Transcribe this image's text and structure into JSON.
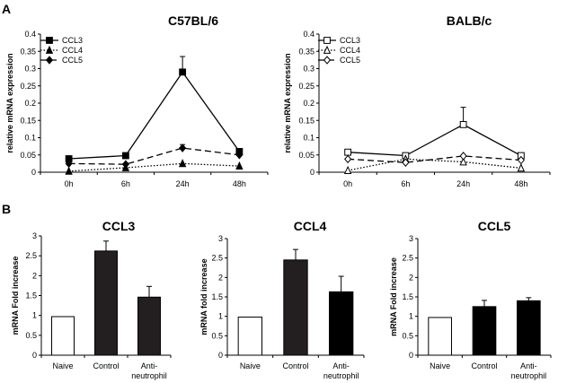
{
  "panel_labels": {
    "a": "A",
    "b": "B"
  },
  "chart_data": [
    {
      "id": "c57",
      "type": "line",
      "title": "C57BL/6",
      "xlabel": "",
      "ylabel": "relative mRNA expression",
      "categories": [
        "0h",
        "6h",
        "24h",
        "48h"
      ],
      "ylim": [
        0,
        0.4
      ],
      "yticks": [
        "0",
        "0.05",
        "0.1",
        "0.15",
        "0.2",
        "0.25",
        "0.3",
        "0.35",
        "0.4"
      ],
      "legend_position": "top-left",
      "series": [
        {
          "name": "CCL3",
          "marker": "square",
          "fill": "#000000",
          "dash": "solid",
          "values": [
            0.039,
            0.048,
            0.29,
            0.06
          ],
          "errors": [
            0.0,
            0.0,
            0.045,
            0.0
          ]
        },
        {
          "name": "CCL4",
          "marker": "triangle",
          "fill": "#000000",
          "dash": "dotted",
          "values": [
            0.003,
            0.013,
            0.025,
            0.018
          ],
          "errors": [
            0,
            0,
            0,
            0
          ]
        },
        {
          "name": "CCL5",
          "marker": "diamond",
          "fill": "#000000",
          "dash": "dashed",
          "values": [
            0.025,
            0.023,
            0.07,
            0.05
          ],
          "errors": [
            0,
            0,
            0.01,
            0
          ]
        }
      ]
    },
    {
      "id": "balb",
      "type": "line",
      "title": "BALB/c",
      "xlabel": "",
      "ylabel": "relative mRNA expression",
      "categories": [
        "0h",
        "6h",
        "24h",
        "48h"
      ],
      "ylim": [
        0,
        0.4
      ],
      "yticks": [
        "0",
        "0.05",
        "0.1",
        "0.15",
        "0.2",
        "0.25",
        "0.3",
        "0.35",
        "0.4"
      ],
      "legend_position": "top-left",
      "series": [
        {
          "name": "CCL3",
          "marker": "square",
          "fill": "#ffffff",
          "dash": "solid",
          "values": [
            0.058,
            0.048,
            0.138,
            0.048
          ],
          "errors": [
            0,
            0,
            0.05,
            0.005
          ]
        },
        {
          "name": "CCL4",
          "marker": "triangle",
          "fill": "#ffffff",
          "dash": "dotted",
          "values": [
            0.005,
            0.038,
            0.03,
            0.012
          ],
          "errors": [
            0,
            0,
            0,
            0
          ]
        },
        {
          "name": "CCL5",
          "marker": "diamond",
          "fill": "#ffffff",
          "dash": "dashed",
          "values": [
            0.038,
            0.028,
            0.047,
            0.035
          ],
          "errors": [
            0,
            0,
            0,
            0
          ]
        }
      ]
    },
    {
      "id": "ccl3",
      "type": "bar",
      "title": "CCL3",
      "xlabel": "",
      "ylabel": "mRNA Fold increase",
      "categories": [
        "Naive",
        "Control",
        "Anti-neutrophil"
      ],
      "category_lines": [
        [
          "Naive"
        ],
        [
          "Control"
        ],
        [
          "Anti-",
          "neutrophil"
        ]
      ],
      "values": [
        0.97,
        2.62,
        1.46
      ],
      "errors": [
        0,
        0.25,
        0.27
      ],
      "colors": [
        "#ffffff",
        "#231f20",
        "#231f20"
      ],
      "ylim": [
        0,
        3
      ],
      "yticks": [
        "0",
        "0.5",
        "1",
        "1.5",
        "2",
        "2.5",
        "3"
      ]
    },
    {
      "id": "ccl4",
      "type": "bar",
      "title": "CCL4",
      "xlabel": "",
      "ylabel": "mRNA fold increase",
      "categories": [
        "Naive",
        "Control",
        "Anti-neutrophil"
      ],
      "category_lines": [
        [
          "Naive"
        ],
        [
          "Control"
        ],
        [
          "Anti-",
          "neutrophil"
        ]
      ],
      "values": [
        0.98,
        2.45,
        1.63
      ],
      "errors": [
        0,
        0.27,
        0.4
      ],
      "colors": [
        "#ffffff",
        "#231f20",
        "#000000"
      ],
      "ylim": [
        0,
        3
      ],
      "yticks": [
        "0",
        "0.5",
        "1",
        "1.5",
        "2",
        "2.5",
        "3"
      ]
    },
    {
      "id": "ccl5",
      "type": "bar",
      "title": "CCL5",
      "xlabel": "",
      "ylabel": "mRNA Fold increase",
      "categories": [
        "Naive",
        "Control",
        "Anti-neutrophil"
      ],
      "category_lines": [
        [
          "Naive"
        ],
        [
          "Control"
        ],
        [
          "Anti-",
          "neutrophil"
        ]
      ],
      "values": [
        0.97,
        1.25,
        1.4
      ],
      "errors": [
        0,
        0.16,
        0.08
      ],
      "colors": [
        "#ffffff",
        "#000000",
        "#000000"
      ],
      "ylim": [
        0,
        3
      ],
      "yticks": [
        "0",
        "0.5",
        "1",
        "1.5",
        "2",
        "2.5",
        "3"
      ]
    }
  ]
}
